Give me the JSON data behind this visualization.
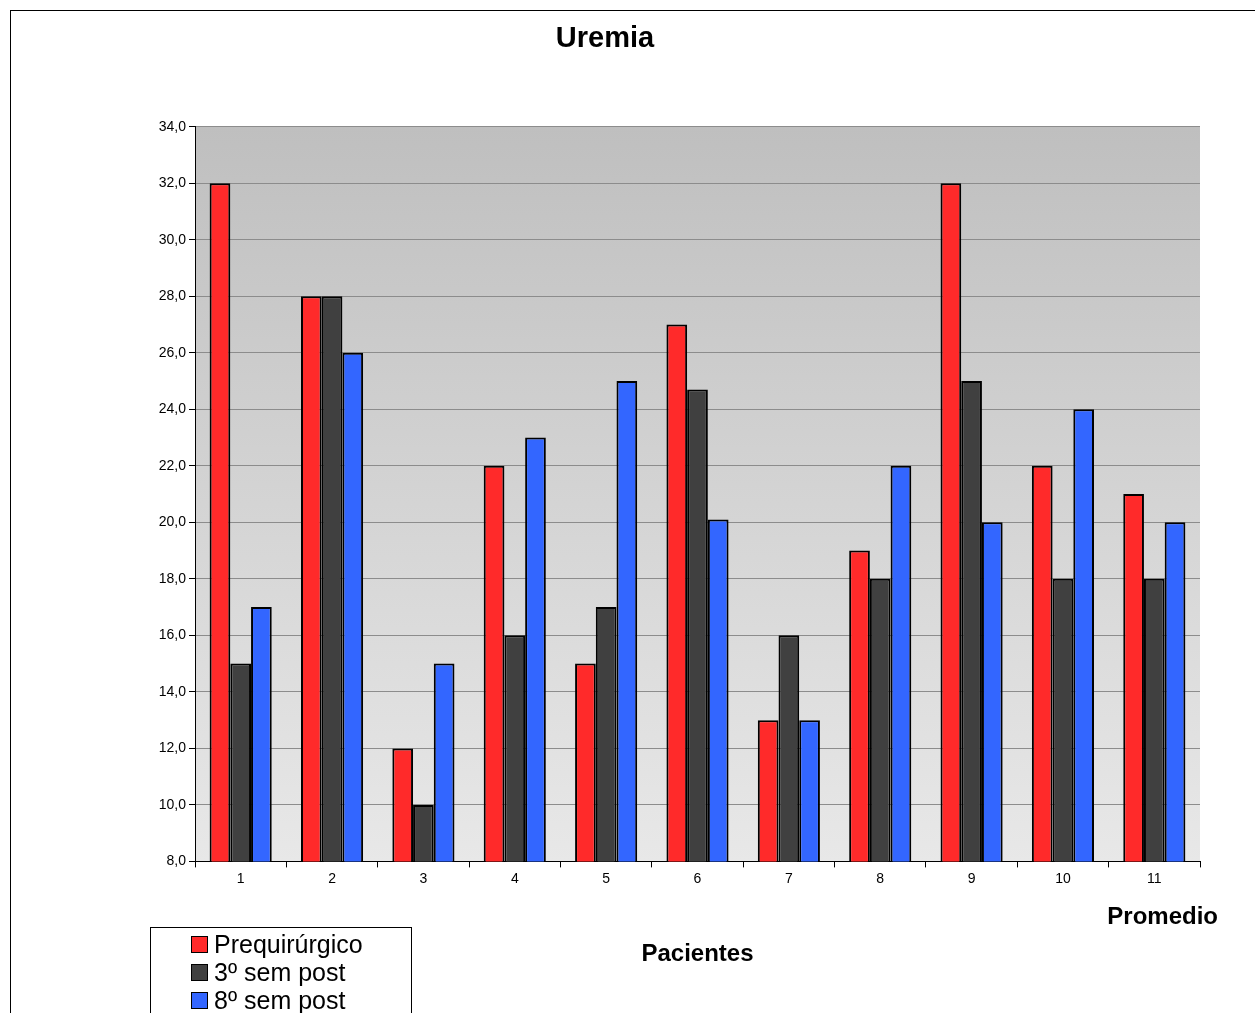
{
  "chart_data": {
    "type": "bar",
    "title": "Uremia",
    "xlabel": "Pacientes",
    "categories": [
      "1",
      "2",
      "3",
      "4",
      "5",
      "6",
      "7",
      "8",
      "9",
      "10",
      "11"
    ],
    "series": [
      {
        "name": "Prequirúrgico",
        "color": "#ff2a2a",
        "values": [
          32,
          28,
          12,
          22,
          15,
          27,
          13,
          19,
          32,
          22,
          21
        ]
      },
      {
        "name": "3º sem post",
        "color": "#404040",
        "values": [
          15,
          28,
          10,
          16,
          17,
          24.7,
          16,
          18,
          25,
          18,
          18
        ]
      },
      {
        "name": "8º sem post",
        "color": "#3366ff",
        "values": [
          17,
          26,
          15,
          23,
          25,
          20.1,
          13,
          22,
          20,
          24,
          20
        ]
      }
    ],
    "ylim": [
      8,
      34
    ],
    "yticks": [
      {
        "value": 8,
        "label": "8,0"
      },
      {
        "value": 10,
        "label": "10,0"
      },
      {
        "value": 12,
        "label": "12,0"
      },
      {
        "value": 14,
        "label": "14,0"
      },
      {
        "value": 16,
        "label": "16,0"
      },
      {
        "value": 18,
        "label": "18,0"
      },
      {
        "value": 20,
        "label": "20,0"
      },
      {
        "value": 22,
        "label": "22,0"
      },
      {
        "value": 24,
        "label": "24,0"
      },
      {
        "value": 26,
        "label": "26,0"
      },
      {
        "value": 28,
        "label": "28,0"
      },
      {
        "value": 30,
        "label": "30,0"
      },
      {
        "value": 32,
        "label": "32,0"
      },
      {
        "value": 34,
        "label": "34,0"
      }
    ],
    "grid": "y",
    "legend": "bottom left",
    "annotations": [
      "Promedio"
    ]
  }
}
